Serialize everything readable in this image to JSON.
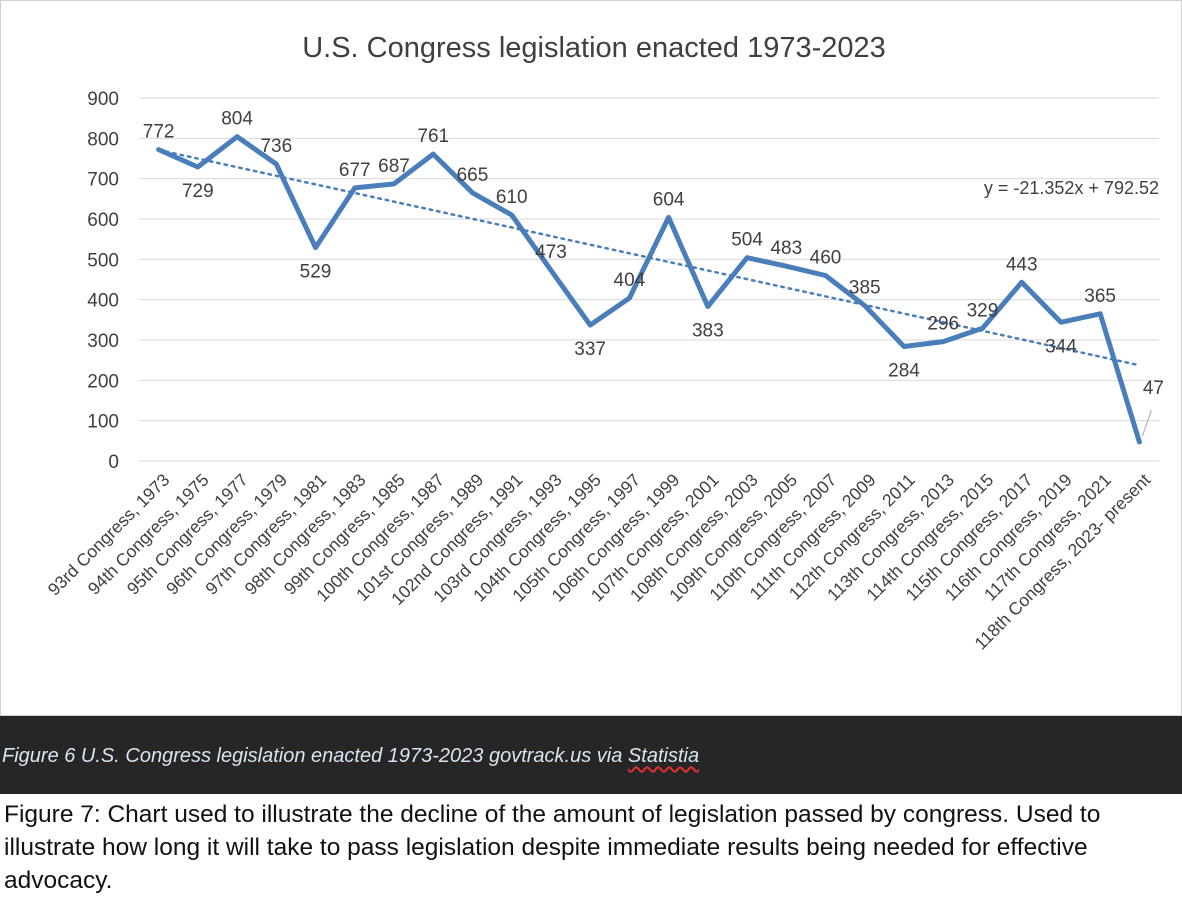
{
  "chart_data": {
    "type": "line",
    "title": "U.S. Congress legislation enacted 1973-2023",
    "xlabel": "",
    "ylabel": "",
    "ylim": [
      0,
      900
    ],
    "yticks": [
      0,
      100,
      200,
      300,
      400,
      500,
      600,
      700,
      800,
      900
    ],
    "grid": true,
    "legend": "none",
    "categories": [
      "93rd Congress, 1973",
      "94th Congress, 1975",
      "95th Congress, 1977",
      "96th Congress, 1979",
      "97th Congress, 1981",
      "98th Congress, 1983",
      "99th Congress, 1985",
      "100th Congress, 1987",
      "101st Congress, 1989",
      "102nd Congress, 1991",
      "103rd Congress, 1993",
      "104th Congress, 1995",
      "105th Congress, 1997",
      "106th Congress, 1999",
      "107th Congress, 2001",
      "108th Congress, 2003",
      "109th Congress, 2005",
      "110th Congress, 2007",
      "111th Congress, 2009",
      "112th Congress, 2011",
      "113th Congress, 2013",
      "114th Congress, 2015",
      "115th Congress, 2017",
      "116th Congress, 2019",
      "117th Congress, 2021",
      "118th Congress, 2023- present"
    ],
    "series": [
      {
        "values": [
          772,
          729,
          804,
          736,
          529,
          677,
          687,
          761,
          665,
          610,
          473,
          337,
          404,
          604,
          383,
          504,
          483,
          460,
          385,
          284,
          296,
          329,
          443,
          344,
          365,
          47
        ],
        "color": "#4a7ebb"
      }
    ],
    "trendline": {
      "type": "linear",
      "slope": -21.352,
      "intercept": 792.52,
      "equation": "y = -21.352x + 792.52",
      "color": "#4a7ebb"
    }
  },
  "caption": {
    "prefix": "Figure 6 U.S. Congress legislation enacted 1973-2023 govtrack.us via ",
    "source": "Statistia"
  },
  "description": "Figure 7: Chart used to illustrate the decline of the amount of legislation passed by congress. Used to illustrate how long it will take to pass legislation despite immediate results being needed for effective advocacy."
}
